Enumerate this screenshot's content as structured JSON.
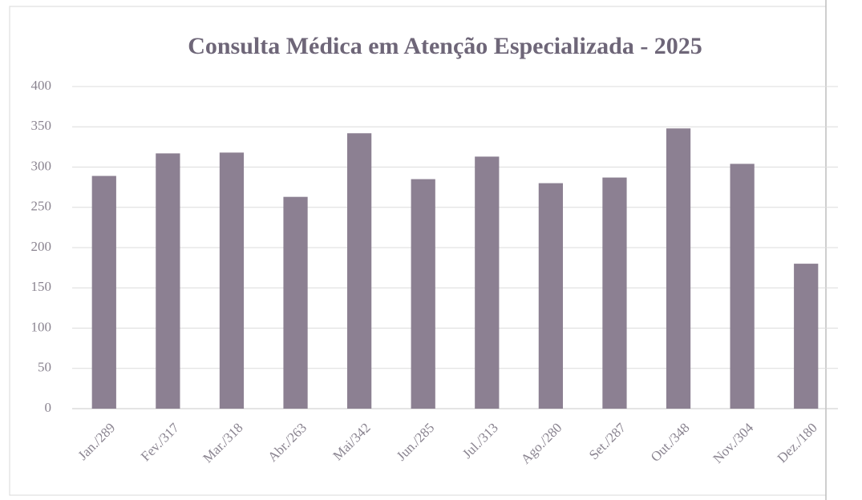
{
  "chart_data": {
    "type": "bar",
    "title": "Consulta Médica em Atenção Especializada - 2025",
    "categories": [
      "Jan./289",
      "Fev./317",
      "Mar./318",
      "Abr./263",
      "Mai/342",
      "Jun./285",
      "Jul./313",
      "Ago./280",
      "Set./287",
      "Out./348",
      "Nov./304",
      "Dez./180"
    ],
    "values": [
      289,
      317,
      318,
      263,
      342,
      285,
      313,
      280,
      287,
      348,
      304,
      180
    ],
    "color": "#8c8092",
    "ylim": [
      0,
      400
    ],
    "yticks": [
      0,
      50,
      100,
      150,
      200,
      250,
      300,
      350,
      400
    ],
    "grid": true
  }
}
